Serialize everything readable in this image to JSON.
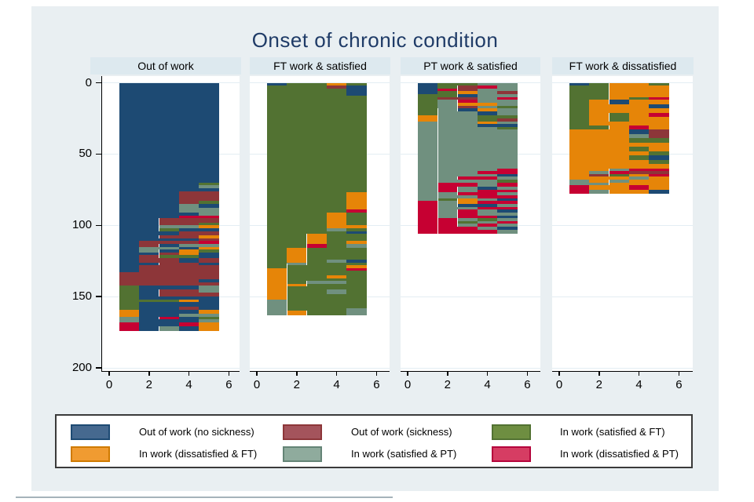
{
  "chart_data": {
    "type": "heatmap",
    "subtype": "sequence-index-plot",
    "title": "Onset of chronic condition",
    "xlabel": "",
    "ylabel": "",
    "x_range": [
      0,
      6
    ],
    "y_range": [
      0,
      200
    ],
    "x_ticks": [
      0,
      2,
      4,
      6
    ],
    "y_ticks": [
      0,
      50,
      100,
      150,
      200
    ],
    "grid": true,
    "bar_t_range": [
      0.5,
      5.5
    ],
    "time_columns": [
      [
        0.5,
        1.5
      ],
      [
        1.5,
        2.5
      ],
      [
        2.5,
        3.5
      ],
      [
        3.5,
        4.5
      ],
      [
        4.5,
        5.5
      ]
    ],
    "states": {
      "B": "Out of work (no sickness)",
      "M": "Out of work (sickness)",
      "G": "In work (satisfied & FT)",
      "O": "In work (dissatisfied & FT)",
      "S": "In work (satisfied & PT)",
      "C": "In work (dissatisfied & PT)"
    },
    "palette": {
      "B": "#1d4a73",
      "M": "#8d3639",
      "G": "#527232",
      "O": "#e68508",
      "S": "#70907f",
      "C": "#c60032"
    },
    "separators": [
      {
        "panel": 1,
        "t": 1.5,
        "y0": 127,
        "y1": 163
      },
      {
        "panel": 2,
        "t": 1.5,
        "y0": 18,
        "y1": 106
      }
    ],
    "panels": [
      {
        "label": "Out of work",
        "n_rows": 174,
        "bands": [
          [
            0,
            70,
            "BBBBB"
          ],
          [
            70,
            72,
            "BBBBG"
          ],
          [
            72,
            74,
            "BBBBS"
          ],
          [
            74,
            76,
            "BBBBB"
          ],
          [
            76,
            83,
            "BBBMM"
          ],
          [
            83,
            85,
            "BBBMG"
          ],
          [
            85,
            88,
            "BBBSB"
          ],
          [
            88,
            91,
            "BBBSS"
          ],
          [
            91,
            93,
            "BBBBS"
          ],
          [
            93,
            95,
            "BBBCC"
          ],
          [
            95,
            98,
            "BBMMM"
          ],
          [
            98,
            100,
            "BBMMG"
          ],
          [
            100,
            102,
            "BBSSO"
          ],
          [
            102,
            104,
            "BBGBB"
          ],
          [
            104,
            107,
            "BBBMM"
          ],
          [
            107,
            109,
            "BBMMO"
          ],
          [
            109,
            111,
            "BBBBM"
          ],
          [
            111,
            113,
            "BMMMC"
          ],
          [
            113,
            115,
            "BMBSS"
          ],
          [
            115,
            117,
            "BSSBO"
          ],
          [
            117,
            119,
            "BSBOG"
          ],
          [
            119,
            121,
            "BBMOB"
          ],
          [
            121,
            123,
            "BMGGB"
          ],
          [
            123,
            126,
            "BMMBM"
          ],
          [
            126,
            128,
            "BBMMB"
          ],
          [
            128,
            133,
            "BMMMM"
          ],
          [
            133,
            138,
            "MMMMM"
          ],
          [
            138,
            140,
            "MMMMB"
          ],
          [
            140,
            142,
            "MMMMM"
          ],
          [
            142,
            145,
            "GBBBS"
          ],
          [
            145,
            147,
            "GBMMS"
          ],
          [
            147,
            150,
            "GBMMM"
          ],
          [
            150,
            152,
            "GBBBB"
          ],
          [
            152,
            154,
            "GGGOB"
          ],
          [
            154,
            157,
            "GBBBB"
          ],
          [
            157,
            159,
            "GBBMB"
          ],
          [
            159,
            162,
            "OBBBO"
          ],
          [
            162,
            164,
            "OBBSS"
          ],
          [
            164,
            166,
            "SBCBG"
          ],
          [
            166,
            168,
            "SBBBS"
          ],
          [
            168,
            171,
            "CBBCO"
          ],
          [
            171,
            174,
            "CBSBO"
          ]
        ]
      },
      {
        "label": "FT work & satisfied",
        "n_rows": 163,
        "bands": [
          [
            0,
            2,
            "BGGOG"
          ],
          [
            2,
            4,
            "GGGMB"
          ],
          [
            4,
            9,
            "GGGGB"
          ],
          [
            9,
            77,
            "GGGGG"
          ],
          [
            77,
            89,
            "GGGGO"
          ],
          [
            89,
            91,
            "GGGGC"
          ],
          [
            91,
            100,
            "GGGOG"
          ],
          [
            100,
            102,
            "GGGOO"
          ],
          [
            102,
            104,
            "GGGSG"
          ],
          [
            104,
            106,
            "GGGGB"
          ],
          [
            106,
            111,
            "GGOGG"
          ],
          [
            111,
            113,
            "GGOGO"
          ],
          [
            113,
            116,
            "GGCGS"
          ],
          [
            116,
            124,
            "GOGGG"
          ],
          [
            124,
            126,
            "GOGSB"
          ],
          [
            126,
            128,
            "GSGGG"
          ],
          [
            128,
            130,
            "GGGGO"
          ],
          [
            130,
            132,
            "OGGGC"
          ],
          [
            132,
            135,
            "OGGGG"
          ],
          [
            135,
            137,
            "OGGOG"
          ],
          [
            137,
            139,
            "OGGGG"
          ],
          [
            139,
            141,
            "OGSSG"
          ],
          [
            141,
            143,
            "OOGGG"
          ],
          [
            143,
            145,
            "OGGGG"
          ],
          [
            145,
            148,
            "OGGSG"
          ],
          [
            148,
            152,
            "OGGGG"
          ],
          [
            152,
            158,
            "SGGGG"
          ],
          [
            158,
            160,
            "SGGGS"
          ],
          [
            160,
            163,
            "SOGGS"
          ]
        ]
      },
      {
        "label": "PT work & satisfied",
        "n_rows": 106,
        "bands": [
          [
            0,
            2,
            "BGGSS"
          ],
          [
            2,
            4,
            "BGMCS"
          ],
          [
            4,
            6,
            "BCMSS"
          ],
          [
            6,
            8,
            "BGOSM"
          ],
          [
            8,
            10,
            "GGBSS"
          ],
          [
            10,
            12,
            "GMMSC"
          ],
          [
            12,
            14,
            "GSCSS"
          ],
          [
            14,
            16,
            "GSOOS"
          ],
          [
            16,
            18,
            "GSMSG"
          ],
          [
            18,
            20,
            "GSBOS"
          ],
          [
            20,
            23,
            "GSSBS"
          ],
          [
            23,
            25,
            "OSSGG"
          ],
          [
            25,
            27,
            "OSSGM"
          ],
          [
            27,
            29,
            "SSSOS"
          ],
          [
            29,
            31,
            "SSSBB"
          ],
          [
            31,
            33,
            "SSSSG"
          ],
          [
            33,
            60,
            "SSSSS"
          ],
          [
            60,
            62,
            "SSSSC"
          ],
          [
            62,
            64,
            "SSSCC"
          ],
          [
            64,
            66,
            "SSSSB"
          ],
          [
            66,
            68,
            "SSCCS"
          ],
          [
            68,
            70,
            "SSSSG"
          ],
          [
            70,
            73,
            "SCCSC"
          ],
          [
            73,
            75,
            "SCSBS"
          ],
          [
            75,
            77,
            "SCSCC"
          ],
          [
            77,
            79,
            "SSCCS"
          ],
          [
            79,
            81,
            "SSSCC"
          ],
          [
            81,
            83,
            "SGOSB"
          ],
          [
            83,
            85,
            "CSOCC"
          ],
          [
            85,
            87,
            "CSBBS"
          ],
          [
            87,
            89,
            "CSSCC"
          ],
          [
            89,
            91,
            "CSCSB"
          ],
          [
            91,
            93,
            "CSCSS"
          ],
          [
            93,
            95,
            "CSCCB"
          ],
          [
            95,
            97,
            "CCSGS"
          ],
          [
            97,
            99,
            "CCGSC"
          ],
          [
            99,
            101,
            "CCSCS"
          ],
          [
            101,
            103,
            "CCCSB"
          ],
          [
            103,
            106,
            "CCCCS"
          ]
        ]
      },
      {
        "label": "FT work & dissatisfied",
        "n_rows": 78,
        "bands": [
          [
            0,
            2,
            "BGOOG"
          ],
          [
            2,
            10,
            "GGOOO"
          ],
          [
            10,
            12,
            "GGOGC"
          ],
          [
            12,
            15,
            "GOBOO"
          ],
          [
            15,
            18,
            "GOOOB"
          ],
          [
            18,
            21,
            "GOOOO"
          ],
          [
            21,
            24,
            "GOGOC"
          ],
          [
            24,
            27,
            "GOGOO"
          ],
          [
            27,
            30,
            "GOOOO"
          ],
          [
            30,
            33,
            "GGOCO"
          ],
          [
            33,
            36,
            "OOOBM"
          ],
          [
            36,
            39,
            "OOOSM"
          ],
          [
            39,
            42,
            "OOOGG"
          ],
          [
            42,
            45,
            "OOOOO"
          ],
          [
            45,
            48,
            "OOOGO"
          ],
          [
            48,
            51,
            "OOOOG"
          ],
          [
            51,
            54,
            "OOOGB"
          ],
          [
            54,
            57,
            "OOOOG"
          ],
          [
            57,
            60,
            "OOOOO"
          ],
          [
            60,
            62,
            "OOSCC"
          ],
          [
            62,
            64,
            "OSCMM"
          ],
          [
            64,
            66,
            "OMGOC"
          ],
          [
            66,
            68,
            "OOOSO"
          ],
          [
            68,
            70,
            "SOSOO"
          ],
          [
            70,
            72,
            "SSOOO"
          ],
          [
            72,
            75,
            "COOCO"
          ],
          [
            75,
            78,
            "CSOOB"
          ]
        ]
      }
    ]
  },
  "legend": {
    "items": [
      {
        "key": "B",
        "label": "Out of work (no sickness)",
        "swatch_fill": "#46698f",
        "swatch_border": "#1d4a73"
      },
      {
        "key": "M",
        "label": "Out of work (sickness)",
        "swatch_fill": "#a4545c",
        "swatch_border": "#8d3639"
      },
      {
        "key": "G",
        "label": "In work (satisfied & FT)",
        "swatch_fill": "#6e8e41",
        "swatch_border": "#527232"
      },
      {
        "key": "O",
        "label": "In work (dissatisfied & FT)",
        "swatch_fill": "#f09b31",
        "swatch_border": "#cf7a00"
      },
      {
        "key": "S",
        "label": "In work (satisfied & PT)",
        "swatch_fill": "#8fab9d",
        "swatch_border": "#648476"
      },
      {
        "key": "C",
        "label": "In work (dissatisfied & PT)",
        "swatch_fill": "#d63d63",
        "swatch_border": "#b5053c"
      }
    ]
  }
}
